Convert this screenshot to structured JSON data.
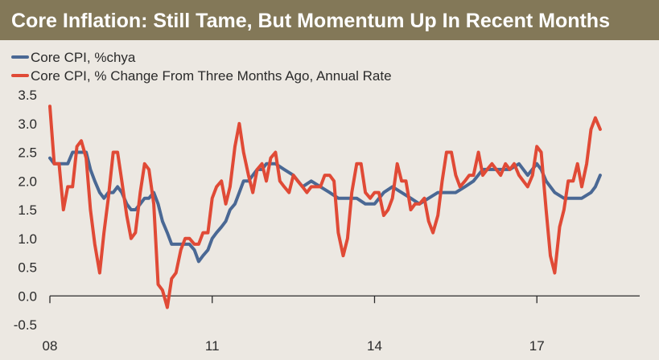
{
  "chart_data": {
    "type": "line",
    "title": "Core Inflation:  Still Tame, But Momentum Up In Recent Months",
    "xlabel": "",
    "ylabel": "",
    "ylim": [
      -0.5,
      3.5
    ],
    "yticks": [
      "3.5",
      "3.0",
      "2.5",
      "2.0",
      "1.5",
      "1.0",
      "0.5",
      "0.0",
      "-0.5"
    ],
    "ytick_values": [
      3.5,
      3.0,
      2.5,
      2.0,
      1.5,
      1.0,
      0.5,
      0.0,
      -0.5
    ],
    "xlim": [
      2008.0,
      2018.9
    ],
    "xticks": [
      "08",
      "11",
      "14",
      "17"
    ],
    "xtick_values": [
      2008,
      2011,
      2014,
      2017
    ],
    "legend_position": "top-left",
    "series": [
      {
        "name": "Core CPI, %chya",
        "color": "#4a6894",
        "x": [
          2008.0,
          2008.08,
          2008.17,
          2008.25,
          2008.33,
          2008.42,
          2008.5,
          2008.58,
          2008.67,
          2008.75,
          2008.83,
          2008.92,
          2009.0,
          2009.08,
          2009.17,
          2009.25,
          2009.33,
          2009.42,
          2009.5,
          2009.58,
          2009.67,
          2009.75,
          2009.83,
          2009.92,
          2010.0,
          2010.08,
          2010.17,
          2010.25,
          2010.33,
          2010.42,
          2010.5,
          2010.58,
          2010.67,
          2010.75,
          2010.83,
          2010.92,
          2011.0,
          2011.08,
          2011.17,
          2011.25,
          2011.33,
          2011.42,
          2011.5,
          2011.58,
          2011.67,
          2011.75,
          2011.83,
          2011.92,
          2012.0,
          2012.17,
          2012.33,
          2012.5,
          2012.67,
          2012.83,
          2013.0,
          2013.17,
          2013.33,
          2013.5,
          2013.67,
          2013.83,
          2014.0,
          2014.17,
          2014.33,
          2014.5,
          2014.67,
          2014.83,
          2015.0,
          2015.17,
          2015.33,
          2015.5,
          2015.67,
          2015.83,
          2016.0,
          2016.17,
          2016.33,
          2016.5,
          2016.67,
          2016.83,
          2017.0,
          2017.08,
          2017.17,
          2017.33,
          2017.5,
          2017.67,
          2017.83,
          2018.0,
          2018.08,
          2018.17
        ],
        "values": [
          2.4,
          2.3,
          2.3,
          2.3,
          2.3,
          2.5,
          2.5,
          2.5,
          2.5,
          2.2,
          2.0,
          1.8,
          1.7,
          1.8,
          1.8,
          1.9,
          1.8,
          1.6,
          1.5,
          1.5,
          1.6,
          1.7,
          1.7,
          1.8,
          1.6,
          1.3,
          1.1,
          0.9,
          0.9,
          0.9,
          0.9,
          0.9,
          0.8,
          0.6,
          0.7,
          0.8,
          1.0,
          1.1,
          1.2,
          1.3,
          1.5,
          1.6,
          1.8,
          2.0,
          2.0,
          2.1,
          2.2,
          2.2,
          2.3,
          2.3,
          2.2,
          2.1,
          1.9,
          2.0,
          1.9,
          1.8,
          1.7,
          1.7,
          1.7,
          1.6,
          1.6,
          1.8,
          1.9,
          1.8,
          1.7,
          1.6,
          1.7,
          1.8,
          1.8,
          1.8,
          1.9,
          2.0,
          2.2,
          2.2,
          2.2,
          2.2,
          2.3,
          2.1,
          2.3,
          2.2,
          2.0,
          1.8,
          1.7,
          1.7,
          1.7,
          1.8,
          1.9,
          2.1
        ]
      },
      {
        "name": "Core CPI, % Change From Three Months Ago, Annual Rate",
        "color": "#e04a36",
        "x": [
          2008.0,
          2008.08,
          2008.17,
          2008.25,
          2008.33,
          2008.42,
          2008.5,
          2008.58,
          2008.67,
          2008.75,
          2008.83,
          2008.92,
          2009.0,
          2009.08,
          2009.17,
          2009.25,
          2009.33,
          2009.42,
          2009.5,
          2009.58,
          2009.67,
          2009.75,
          2009.83,
          2009.92,
          2010.0,
          2010.08,
          2010.17,
          2010.25,
          2010.33,
          2010.42,
          2010.5,
          2010.58,
          2010.67,
          2010.75,
          2010.83,
          2010.92,
          2011.0,
          2011.08,
          2011.17,
          2011.25,
          2011.33,
          2011.42,
          2011.5,
          2011.58,
          2011.67,
          2011.75,
          2011.83,
          2011.92,
          2012.0,
          2012.08,
          2012.17,
          2012.25,
          2012.33,
          2012.42,
          2012.5,
          2012.58,
          2012.67,
          2012.75,
          2012.83,
          2012.92,
          2013.0,
          2013.08,
          2013.17,
          2013.25,
          2013.33,
          2013.42,
          2013.5,
          2013.58,
          2013.67,
          2013.75,
          2013.83,
          2013.92,
          2014.0,
          2014.08,
          2014.17,
          2014.25,
          2014.33,
          2014.42,
          2014.5,
          2014.58,
          2014.67,
          2014.75,
          2014.83,
          2014.92,
          2015.0,
          2015.08,
          2015.17,
          2015.25,
          2015.33,
          2015.42,
          2015.5,
          2015.58,
          2015.67,
          2015.75,
          2015.83,
          2015.92,
          2016.0,
          2016.08,
          2016.17,
          2016.25,
          2016.33,
          2016.42,
          2016.5,
          2016.58,
          2016.67,
          2016.75,
          2016.83,
          2016.92,
          2017.0,
          2017.08,
          2017.17,
          2017.25,
          2017.33,
          2017.42,
          2017.5,
          2017.58,
          2017.67,
          2017.75,
          2017.83,
          2017.92,
          2018.0,
          2018.08,
          2018.17
        ],
        "values": [
          3.3,
          2.3,
          2.3,
          1.5,
          1.9,
          1.9,
          2.6,
          2.7,
          2.4,
          1.5,
          0.9,
          0.4,
          1.1,
          1.7,
          2.5,
          2.5,
          2.0,
          1.4,
          1.0,
          1.1,
          1.8,
          2.3,
          2.2,
          1.6,
          0.2,
          0.1,
          -0.2,
          0.3,
          0.4,
          0.8,
          1.0,
          1.0,
          0.9,
          0.9,
          1.1,
          1.1,
          1.7,
          1.9,
          2.0,
          1.6,
          1.9,
          2.6,
          3.0,
          2.5,
          2.1,
          1.8,
          2.2,
          2.3,
          2.0,
          2.4,
          2.5,
          2.0,
          1.9,
          1.8,
          2.1,
          2.0,
          1.9,
          1.8,
          1.9,
          1.9,
          1.9,
          2.1,
          2.1,
          2.0,
          1.1,
          0.7,
          1.0,
          1.8,
          2.3,
          2.3,
          1.8,
          1.7,
          1.8,
          1.8,
          1.4,
          1.5,
          1.7,
          2.3,
          2.0,
          2.0,
          1.5,
          1.6,
          1.6,
          1.7,
          1.3,
          1.1,
          1.4,
          2.0,
          2.5,
          2.5,
          2.1,
          1.9,
          2.0,
          2.1,
          2.1,
          2.5,
          2.1,
          2.2,
          2.3,
          2.2,
          2.1,
          2.3,
          2.2,
          2.3,
          2.1,
          2.0,
          1.9,
          2.1,
          2.6,
          2.5,
          1.5,
          0.7,
          0.4,
          1.2,
          1.5,
          2.0,
          2.0,
          2.3,
          1.9,
          2.3,
          2.9,
          3.1,
          2.9
        ]
      }
    ]
  }
}
